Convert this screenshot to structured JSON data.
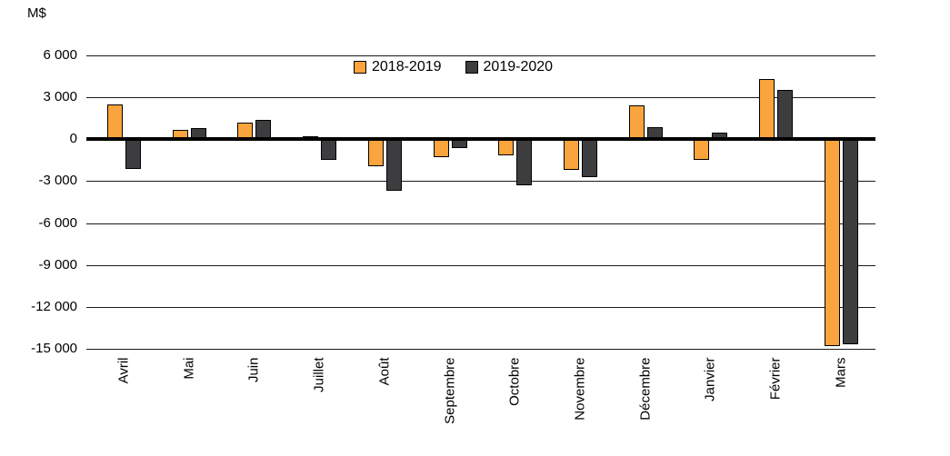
{
  "chart": {
    "value_axis_title": "M$",
    "y_ticks": [
      {
        "value": 6000,
        "label": "6 000"
      },
      {
        "value": 3000,
        "label": "3 000"
      },
      {
        "value": 0,
        "label": "0"
      },
      {
        "value": -3000,
        "label": "-3 000"
      },
      {
        "value": -6000,
        "label": "-6 000"
      },
      {
        "value": -9000,
        "label": "-9 000"
      },
      {
        "value": -12000,
        "label": "-12 000"
      },
      {
        "value": -15000,
        "label": "-15 000"
      }
    ]
  },
  "chart_data": {
    "type": "bar",
    "title": "",
    "ylabel": "M$",
    "xlabel": "",
    "ylim": [
      -15000,
      6000
    ],
    "grid": true,
    "legend_position": "top-center",
    "gridline_color": "#1a1a1a",
    "zero_line_color": "#000000",
    "bar_border_color": "#000000",
    "categories": [
      "Avril",
      "Mai",
      "Juin",
      "Juillet",
      "Août",
      "Septembre",
      "Octobre",
      "Novembre",
      "Décembre",
      "Janvier",
      "Février",
      "Mars"
    ],
    "series": [
      {
        "name": "2018-2019",
        "color": "#F9A43C",
        "values": [
          2500,
          650,
          1200,
          200,
          -1900,
          -1300,
          -1150,
          -2200,
          2450,
          -1500,
          4300,
          -14800
        ]
      },
      {
        "name": "2019-2020",
        "color": "#3D3D3F",
        "values": [
          -2150,
          800,
          1400,
          -1500,
          -3700,
          -600,
          -3300,
          -2700,
          850,
          450,
          3550,
          -14700
        ]
      }
    ]
  }
}
